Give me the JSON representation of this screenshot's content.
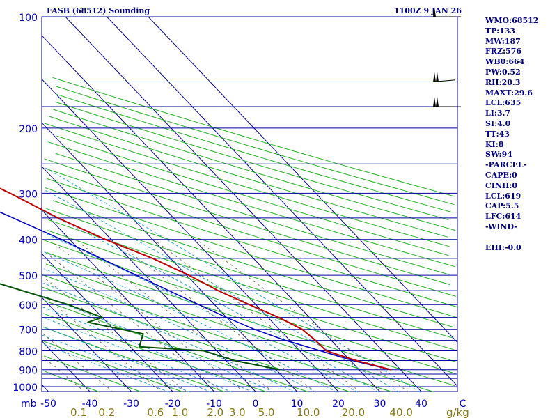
{
  "chart_data": {
    "type": "skew-t",
    "title": "FASB (68512) Sounding",
    "time": "1100Z  9 JAN 26",
    "pressure_unit": "mb",
    "mixing_ratio_unit": "g/kg",
    "pressure_levels": [
      100,
      200,
      300,
      400,
      500,
      600,
      700,
      800,
      900,
      1000
    ],
    "pressure_lines": [
      100,
      150,
      175,
      200,
      250,
      300,
      350,
      400,
      450,
      500,
      550,
      600,
      650,
      700,
      750,
      800,
      850,
      900,
      925,
      950,
      1000
    ],
    "temperature_ticks": [
      "-50",
      "-40",
      "-30",
      "-20",
      "-10",
      "0",
      "10",
      "20",
      "30",
      "40",
      "C"
    ],
    "mixing_ratio_ticks": [
      "0.1",
      "0.2",
      "0.6",
      "1.0",
      "2.0",
      "3.0",
      "5.0",
      "10.0",
      "20.0",
      "40.0"
    ],
    "temperature_profile": [
      {
        "p": 900,
        "t": 37.7
      },
      {
        "p": 850,
        "t": 31.4
      },
      {
        "p": 800,
        "t": 26.4
      },
      {
        "p": 750,
        "t": 26.2
      },
      {
        "p": 700,
        "t": 25.5
      },
      {
        "p": 650,
        "t": 22.6
      },
      {
        "p": 600,
        "t": 18.4
      },
      {
        "p": 550,
        "t": 14.1
      },
      {
        "p": 500,
        "t": 10.6
      },
      {
        "p": 450,
        "t": 5.7
      },
      {
        "p": 400,
        "t": -1.4
      },
      {
        "p": 350,
        "t": -7.9
      },
      {
        "p": 300,
        "t": -13.8
      },
      {
        "p": 250,
        "t": -22.0
      },
      {
        "p": 200,
        "t": -31.4
      },
      {
        "p": 150,
        "t": -42.8
      },
      {
        "p": 130,
        "t": -48.8
      },
      {
        "p": 110,
        "t": -53.4
      },
      {
        "p": 100,
        "t": -51.8
      }
    ],
    "dewpoint_profile": [
      {
        "p": 900,
        "t": 10.9
      },
      {
        "p": 850,
        "t": 2.0
      },
      {
        "p": 800,
        "t": -3.1
      },
      {
        "p": 780,
        "t": -17.8
      },
      {
        "p": 720,
        "t": -13.9
      },
      {
        "p": 670,
        "t": -24.6
      },
      {
        "p": 650,
        "t": -20.0
      },
      {
        "p": 600,
        "t": -25.3
      },
      {
        "p": 520,
        "t": -38.3
      },
      {
        "p": 470,
        "t": -87.5
      },
      {
        "p": 430,
        "t": -32.5
      },
      {
        "p": 400,
        "t": -34.0
      },
      {
        "p": 380,
        "t": -45.0
      },
      {
        "p": 300,
        "t": -59.0
      },
      {
        "p": 250,
        "t": -66.0
      },
      {
        "p": 200,
        "t": -75.0
      },
      {
        "p": 160,
        "t": -86.0
      },
      {
        "p": 130,
        "t": -87.0
      },
      {
        "p": 100,
        "t": -100.0
      }
    ],
    "parcel_profile": [
      {
        "p": 900,
        "t": 37.7
      },
      {
        "p": 850,
        "t": 30.5
      },
      {
        "p": 800,
        "t": 25.0
      },
      {
        "p": 750,
        "t": 19.0
      },
      {
        "p": 700,
        "t": 14.0
      },
      {
        "p": 650,
        "t": 10.0
      },
      {
        "p": 600,
        "t": 6.2
      },
      {
        "p": 500,
        "t": -2.1
      },
      {
        "p": 400,
        "t": -12.0
      },
      {
        "p": 300,
        "t": -26.5
      },
      {
        "p": 200,
        "t": -47.0
      },
      {
        "p": 150,
        "t": -61.0
      },
      {
        "p": 100,
        "t": -80.0
      }
    ],
    "wind_barbs": [
      {
        "p": 100,
        "dir": 270,
        "speed": 10
      },
      {
        "p": 150,
        "dir": 275,
        "speed": 35
      },
      {
        "p": 175,
        "dir": 270,
        "speed": 30
      }
    ]
  },
  "stats": {
    "wmo": "WMO:68512",
    "tp": "TP:133",
    "mw": "MW:187",
    "frz": "FRZ:576",
    "wb0": "WB0:664",
    "pw": "PW:0.52",
    "rh": "RH:20.3",
    "maxt": "MAXT:29.6",
    "lcl": "LCL:635",
    "li": "LI:3.7",
    "si": "SI:4.0",
    "tt": "TT:43",
    "ki": "KI:8",
    "sw": "SW:94",
    "parcel_header": "-PARCEL-",
    "cape": "CAPE:0",
    "cinh": "CINH:0",
    "parcel_lcl": "LCL:619",
    "cap": "CAP:5.5",
    "lfc": "LFC:614",
    "wind_header": "-WIND-",
    "ehi": "EHI:-0.0"
  },
  "colors": {
    "frame": "#000080",
    "isobar": "#0000a0",
    "isotherm": "#000090",
    "dry_adiabat": "#20b020",
    "moist_adiabat": "#20a0d0",
    "mixing_ratio": "#707050",
    "temperature": "#c00000",
    "dewpoint": "#005000",
    "parcel": "#0000c0",
    "mixing_label": "#887710",
    "axis_label": "#0000c0"
  }
}
